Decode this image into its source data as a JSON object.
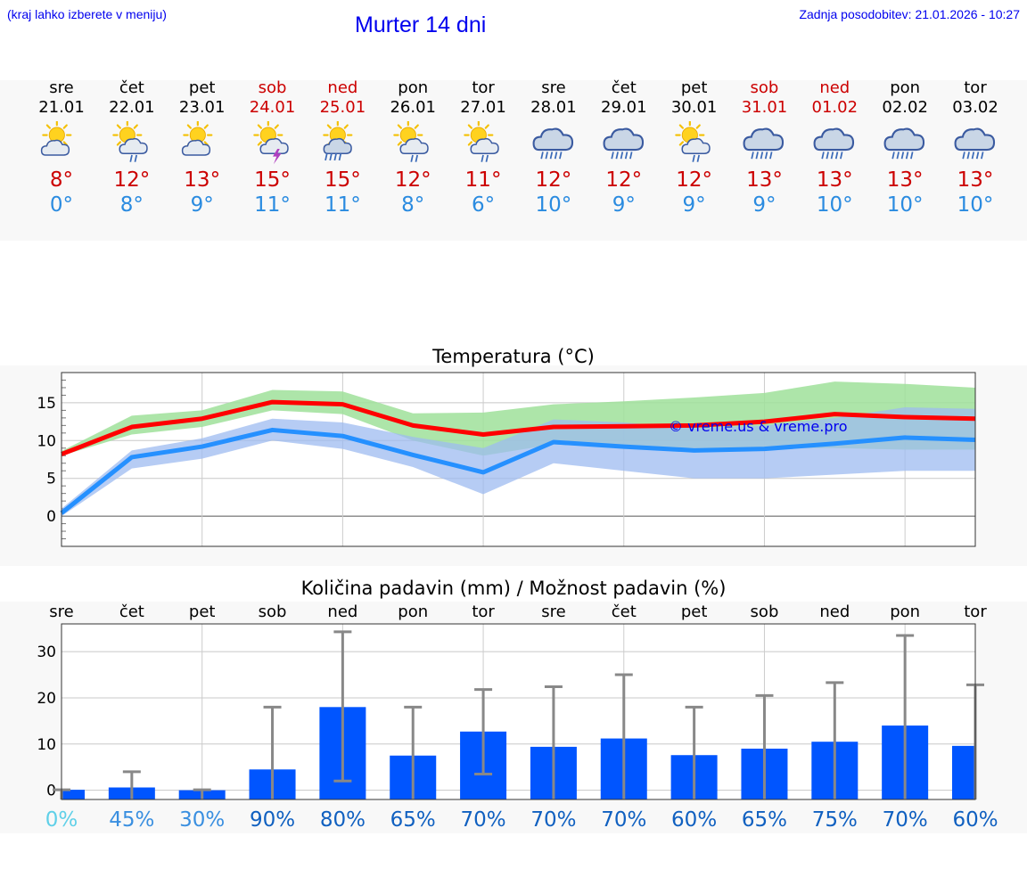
{
  "header": {
    "location_hint": "(kraj lahko izberete v meniju)",
    "title": "Murter 14 dni",
    "updated": "Zadnja posodobitev: 21.01.2026 - 10:27"
  },
  "colors": {
    "tmax": "#cc0000",
    "tmin": "#2a8be0",
    "bar": "#0055ff",
    "weekend": "#cc0000"
  },
  "days": [
    {
      "name": "sre",
      "date": "21.01",
      "weekend": false,
      "icon": "sun-cloud-icon",
      "tmax": "8°",
      "tmin": "0°"
    },
    {
      "name": "čet",
      "date": "22.01",
      "weekend": false,
      "icon": "sun-cloud-rain-icon",
      "tmax": "12°",
      "tmin": "8°"
    },
    {
      "name": "pet",
      "date": "23.01",
      "weekend": false,
      "icon": "sun-cloud-icon",
      "tmax": "13°",
      "tmin": "9°"
    },
    {
      "name": "sob",
      "date": "24.01",
      "weekend": true,
      "icon": "sun-cloud-thunder-icon",
      "tmax": "15°",
      "tmin": "11°"
    },
    {
      "name": "ned",
      "date": "25.01",
      "weekend": true,
      "icon": "sun-cloud-heavy-rain-icon",
      "tmax": "15°",
      "tmin": "11°"
    },
    {
      "name": "pon",
      "date": "26.01",
      "weekend": false,
      "icon": "sun-cloud-rain-icon",
      "tmax": "12°",
      "tmin": "8°"
    },
    {
      "name": "tor",
      "date": "27.01",
      "weekend": false,
      "icon": "sun-cloud-rain-icon",
      "tmax": "11°",
      "tmin": "6°"
    },
    {
      "name": "sre",
      "date": "28.01",
      "weekend": false,
      "icon": "cloud-heavy-rain-icon",
      "tmax": "12°",
      "tmin": "10°"
    },
    {
      "name": "čet",
      "date": "29.01",
      "weekend": false,
      "icon": "cloud-heavy-rain-icon",
      "tmax": "12°",
      "tmin": "9°"
    },
    {
      "name": "pet",
      "date": "30.01",
      "weekend": false,
      "icon": "sun-cloud-rain-icon",
      "tmax": "12°",
      "tmin": "9°"
    },
    {
      "name": "sob",
      "date": "31.01",
      "weekend": true,
      "icon": "cloud-heavy-rain-icon",
      "tmax": "13°",
      "tmin": "9°"
    },
    {
      "name": "ned",
      "date": "01.02",
      "weekend": true,
      "icon": "cloud-heavy-rain-icon",
      "tmax": "13°",
      "tmin": "10°"
    },
    {
      "name": "pon",
      "date": "02.02",
      "weekend": false,
      "icon": "cloud-heavy-rain-icon",
      "tmax": "13°",
      "tmin": "10°"
    },
    {
      "name": "tor",
      "date": "03.02",
      "weekend": false,
      "icon": "cloud-heavy-rain-icon",
      "tmax": "13°",
      "tmin": "10°"
    }
  ],
  "chart_data": [
    {
      "type": "line",
      "title": "Temperatura (°C)",
      "watermark": "© vreme.us & vreme.pro",
      "x": [
        0,
        1,
        2,
        3,
        4,
        5,
        6,
        7,
        8,
        9,
        10,
        11,
        12,
        13
      ],
      "ylim": [
        -4,
        19
      ],
      "yticks": [
        0,
        5,
        10,
        15
      ],
      "grid": true,
      "series": [
        {
          "name": "max",
          "values": [
            8.2,
            11.8,
            12.9,
            15.1,
            14.8,
            12.0,
            10.8,
            11.8,
            11.9,
            12.0,
            12.5,
            13.5,
            13.1,
            12.9
          ],
          "band_low": [
            8.0,
            10.8,
            11.8,
            14.0,
            13.5,
            10.0,
            8.0,
            9.5,
            9.0,
            9.0,
            9.0,
            9.0,
            8.8,
            8.8
          ],
          "band_high": [
            8.6,
            13.3,
            14.0,
            16.7,
            16.5,
            13.6,
            13.7,
            14.8,
            15.2,
            15.7,
            16.3,
            17.8,
            17.5,
            17.0
          ]
        },
        {
          "name": "min",
          "values": [
            0.4,
            7.8,
            9.2,
            11.4,
            10.6,
            8.1,
            5.8,
            9.8,
            9.2,
            8.7,
            8.9,
            9.6,
            10.4,
            10.1
          ],
          "band_low": [
            0.0,
            6.3,
            7.6,
            10.0,
            8.9,
            6.5,
            2.9,
            7.0,
            6.0,
            5.0,
            5.0,
            5.5,
            6.0,
            6.0
          ],
          "band_high": [
            1.0,
            8.7,
            10.3,
            12.9,
            12.4,
            10.5,
            9.0,
            12.8,
            12.4,
            11.6,
            12.0,
            13.0,
            14.4,
            14.2
          ]
        }
      ]
    },
    {
      "type": "bar",
      "title": "Količina padavin (mm) / Možnost padavin (%)",
      "categories": [
        "sre",
        "čet",
        "pet",
        "sob",
        "ned",
        "pon",
        "tor",
        "sre",
        "čet",
        "pet",
        "sob",
        "ned",
        "pon",
        "tor"
      ],
      "values": [
        0.1,
        0.6,
        0.0,
        4.5,
        18.0,
        7.5,
        12.7,
        9.4,
        11.2,
        7.6,
        9.0,
        10.5,
        14.0,
        9.6
      ],
      "err_low": [
        0,
        0,
        0,
        0,
        2,
        0,
        3.5,
        0,
        0,
        0,
        0,
        0,
        0,
        0
      ],
      "err_high": [
        0.1,
        4.0,
        0.1,
        18.0,
        34.3,
        18.0,
        21.8,
        22.4,
        25.0,
        18.0,
        20.5,
        23.3,
        33.5,
        22.8
      ],
      "ylim": [
        -2,
        36
      ],
      "yticks": [
        0,
        10,
        20,
        30
      ],
      "probabilities": [
        "0%",
        "45%",
        "30%",
        "90%",
        "80%",
        "65%",
        "70%",
        "70%",
        "70%",
        "60%",
        "65%",
        "75%",
        "70%",
        "60%"
      ]
    }
  ]
}
